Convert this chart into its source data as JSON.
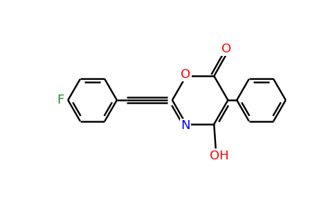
{
  "background_color": "#ffffff",
  "bond_color": "#000000",
  "bond_width": 1.8,
  "atom_colors": {
    "F": "#228B22",
    "O": "#ff0000",
    "N": "#0000ff",
    "H": "#000000",
    "C": "#000000"
  },
  "font_size": 13,
  "figsize": [
    4.84,
    3.0
  ],
  "dpi": 100
}
